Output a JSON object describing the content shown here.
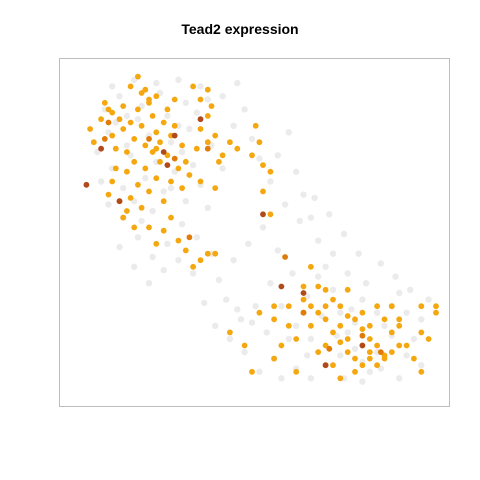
{
  "chart_data": {
    "type": "scatter",
    "title": "Tead2 expression",
    "xlabel": "",
    "ylabel": "",
    "xlim": [
      0,
      100
    ],
    "ylim": [
      0,
      100
    ],
    "axes_shown": false,
    "grid": false,
    "legend": "none",
    "color_scale": {
      "background": "#ebebeb",
      "low": "#f5a70f",
      "mid": "#e07b0a",
      "high": "#b04a1a"
    },
    "series": [
      {
        "values": [
          [
            10,
            88
          ],
          [
            11,
            81
          ],
          [
            13,
            84
          ],
          [
            14,
            92
          ],
          [
            16,
            77
          ],
          [
            17,
            74
          ],
          [
            19,
            85
          ],
          [
            20,
            89
          ],
          [
            22,
            80
          ],
          [
            24,
            72
          ],
          [
            25,
            93
          ],
          [
            27,
            86
          ],
          [
            28,
            78
          ],
          [
            30,
            83
          ],
          [
            12,
            70
          ],
          [
            15,
            64
          ],
          [
            18,
            60
          ],
          [
            21,
            67
          ],
          [
            23,
            57
          ],
          [
            26,
            63
          ],
          [
            29,
            69
          ],
          [
            31,
            75
          ],
          [
            33,
            82
          ],
          [
            34,
            71
          ],
          [
            36,
            65
          ],
          [
            38,
            58
          ],
          [
            9,
            66
          ],
          [
            8,
            75
          ],
          [
            32,
            90
          ],
          [
            35,
            87
          ],
          [
            39,
            77
          ],
          [
            42,
            70
          ],
          [
            45,
            83
          ],
          [
            48,
            88
          ],
          [
            50,
            79
          ],
          [
            52,
            73
          ],
          [
            55,
            66
          ],
          [
            57,
            74
          ],
          [
            60,
            81
          ],
          [
            62,
            69
          ],
          [
            64,
            62
          ],
          [
            66,
            55
          ],
          [
            68,
            48
          ],
          [
            70,
            40
          ],
          [
            72,
            33
          ],
          [
            74,
            26
          ],
          [
            76,
            20
          ],
          [
            78,
            15
          ],
          [
            80,
            11
          ],
          [
            82,
            8
          ],
          [
            84,
            14
          ],
          [
            86,
            22
          ],
          [
            88,
            28
          ],
          [
            90,
            32
          ],
          [
            92,
            26
          ],
          [
            94,
            18
          ],
          [
            96,
            24
          ],
          [
            98,
            30
          ],
          [
            85,
            9
          ],
          [
            80,
            5
          ],
          [
            75,
            6
          ],
          [
            70,
            10
          ],
          [
            65,
            13
          ],
          [
            60,
            18
          ],
          [
            56,
            12
          ],
          [
            52,
            8
          ],
          [
            48,
            14
          ],
          [
            44,
            18
          ],
          [
            40,
            22
          ],
          [
            37,
            29
          ],
          [
            41,
            36
          ],
          [
            45,
            42
          ],
          [
            49,
            47
          ],
          [
            53,
            52
          ],
          [
            57,
            45
          ],
          [
            61,
            38
          ],
          [
            65,
            31
          ],
          [
            69,
            25
          ],
          [
            73,
            19
          ],
          [
            77,
            27
          ],
          [
            81,
            35
          ],
          [
            85,
            41
          ],
          [
            89,
            37
          ],
          [
            93,
            33
          ],
          [
            79,
            44
          ],
          [
            75,
            50
          ],
          [
            71,
            56
          ],
          [
            67,
            61
          ],
          [
            63,
            54
          ],
          [
            59,
            59
          ],
          [
            55,
            35
          ],
          [
            51,
            28
          ],
          [
            47,
            24
          ],
          [
            43,
            30
          ],
          [
            39,
            44
          ],
          [
            35,
            49
          ],
          [
            31,
            53
          ],
          [
            27,
            47
          ],
          [
            23,
            43
          ],
          [
            19,
            49
          ],
          [
            15,
            55
          ],
          [
            11,
            59
          ],
          [
            14,
            46
          ],
          [
            18,
            40
          ],
          [
            22,
            35
          ],
          [
            26,
            39
          ],
          [
            30,
            42
          ],
          [
            34,
            38
          ],
          [
            12,
            95
          ],
          [
            18,
            97
          ],
          [
            24,
            96
          ],
          [
            30,
            97
          ],
          [
            36,
            95
          ],
          [
            42,
            92
          ],
          [
            46,
            96
          ],
          [
            38,
            91
          ],
          [
            28,
            64
          ],
          [
            32,
            60
          ],
          [
            20,
            54
          ],
          [
            16,
            86
          ],
          [
            58,
            28
          ],
          [
            62,
            22
          ],
          [
            66,
            18
          ],
          [
            54,
            20
          ],
          [
            50,
            23
          ],
          [
            46,
            27
          ],
          [
            68,
            37
          ],
          [
            72,
            44
          ],
          [
            76,
            38
          ],
          [
            80,
            30
          ],
          [
            84,
            26
          ],
          [
            88,
            19
          ],
          [
            92,
            13
          ],
          [
            96,
            10
          ],
          [
            90,
            6
          ],
          [
            62,
            9
          ],
          [
            58,
            6
          ],
          [
            66,
            6
          ],
          [
            74,
            13
          ],
          [
            78,
            23
          ]
        ]
      },
      {
        "values": [
          [
            6,
            82
          ],
          [
            7,
            78
          ],
          [
            9,
            85
          ],
          [
            10,
            90
          ],
          [
            11,
            88
          ],
          [
            12,
            87
          ],
          [
            12,
            80
          ],
          [
            13,
            76
          ],
          [
            13,
            70
          ],
          [
            14,
            85
          ],
          [
            15,
            89
          ],
          [
            15,
            82
          ],
          [
            16,
            75
          ],
          [
            16,
            69
          ],
          [
            17,
            84
          ],
          [
            18,
            79
          ],
          [
            18,
            72
          ],
          [
            19,
            88
          ],
          [
            19,
            65
          ],
          [
            20,
            83
          ],
          [
            21,
            77
          ],
          [
            21,
            70
          ],
          [
            22,
            90
          ],
          [
            22,
            63
          ],
          [
            23,
            86
          ],
          [
            23,
            75
          ],
          [
            24,
            81
          ],
          [
            24,
            67
          ],
          [
            25,
            78
          ],
          [
            25,
            72
          ],
          [
            26,
            84
          ],
          [
            26,
            60
          ],
          [
            27,
            74
          ],
          [
            28,
            80
          ],
          [
            28,
            66
          ],
          [
            29,
            83
          ],
          [
            30,
            70
          ],
          [
            31,
            77
          ],
          [
            31,
            64
          ],
          [
            32,
            72
          ],
          [
            33,
            68
          ],
          [
            11,
            62
          ],
          [
            12,
            66
          ],
          [
            14,
            60
          ],
          [
            15,
            55
          ],
          [
            16,
            57
          ],
          [
            17,
            61
          ],
          [
            18,
            52
          ],
          [
            20,
            58
          ],
          [
            22,
            52
          ],
          [
            24,
            47
          ],
          [
            26,
            51
          ],
          [
            28,
            55
          ],
          [
            30,
            48
          ],
          [
            32,
            45
          ],
          [
            34,
            40
          ],
          [
            36,
            42
          ],
          [
            38,
            44
          ],
          [
            40,
            44
          ],
          [
            17,
            95
          ],
          [
            20,
            93
          ],
          [
            19,
            98
          ],
          [
            21,
            94
          ],
          [
            22,
            91
          ],
          [
            24,
            92
          ],
          [
            34,
            95
          ],
          [
            36,
            91
          ],
          [
            38,
            94
          ],
          [
            39,
            89
          ],
          [
            38,
            86
          ],
          [
            40,
            80
          ],
          [
            44,
            78
          ],
          [
            46,
            76
          ],
          [
            50,
            74
          ],
          [
            52,
            78
          ],
          [
            51,
            83
          ],
          [
            53,
            71
          ],
          [
            55,
            69
          ],
          [
            53,
            63
          ],
          [
            55,
            56
          ],
          [
            35,
            76
          ],
          [
            36,
            82
          ],
          [
            24,
            76
          ],
          [
            27,
            88
          ],
          [
            29,
            91
          ],
          [
            40,
            64
          ],
          [
            41,
            72
          ],
          [
            66,
            40
          ],
          [
            64,
            34
          ],
          [
            68,
            34
          ],
          [
            70,
            28
          ],
          [
            72,
            30
          ],
          [
            74,
            28
          ],
          [
            74,
            22
          ],
          [
            76,
            25
          ],
          [
            78,
            24
          ],
          [
            80,
            21
          ],
          [
            80,
            16
          ],
          [
            82,
            18
          ],
          [
            82,
            22
          ],
          [
            84,
            16
          ],
          [
            84,
            28
          ],
          [
            86,
            13
          ],
          [
            88,
            20
          ],
          [
            90,
            16
          ],
          [
            72,
            10
          ],
          [
            76,
            14
          ],
          [
            78,
            12
          ],
          [
            78,
            8
          ],
          [
            74,
            6
          ],
          [
            60,
            22
          ],
          [
            62,
            18
          ],
          [
            64,
            26
          ],
          [
            58,
            16
          ],
          [
            50,
            8
          ],
          [
            56,
            12
          ],
          [
            62,
            8
          ],
          [
            70,
            16
          ],
          [
            66,
            22
          ],
          [
            68,
            14
          ],
          [
            72,
            20
          ],
          [
            76,
            18
          ],
          [
            80,
            10
          ],
          [
            82,
            14
          ],
          [
            86,
            24
          ],
          [
            88,
            14
          ],
          [
            96,
            20
          ],
          [
            100,
            26
          ],
          [
            90,
            22
          ],
          [
            92,
            16
          ],
          [
            96,
            28
          ],
          [
            100,
            28
          ],
          [
            80,
            26
          ],
          [
            86,
            12
          ],
          [
            70,
            24
          ],
          [
            56,
            24
          ],
          [
            48,
            16
          ],
          [
            44,
            20
          ],
          [
            52,
            26
          ],
          [
            56,
            28
          ],
          [
            60,
            28
          ],
          [
            64,
            30
          ],
          [
            66,
            28
          ],
          [
            68,
            26
          ],
          [
            70,
            33
          ],
          [
            74,
            17
          ],
          [
            76,
            33
          ],
          [
            82,
            12
          ],
          [
            84,
            10
          ],
          [
            88,
            28
          ],
          [
            90,
            24
          ],
          [
            94,
            12
          ],
          [
            96,
            8
          ],
          [
            98,
            18
          ],
          [
            36,
            66
          ],
          [
            38,
            78
          ],
          [
            42,
            74
          ]
        ]
      },
      {
        "values": [
          [
            10,
            79
          ],
          [
            11,
            84
          ],
          [
            29,
            73
          ],
          [
            38,
            76
          ],
          [
            22,
            79
          ],
          [
            33,
            49
          ],
          [
            59,
            43
          ],
          [
            80,
            19
          ],
          [
            85,
            14
          ],
          [
            64,
            26
          ],
          [
            71,
            15
          ]
        ]
      },
      {
        "values": [
          [
            5,
            65
          ],
          [
            9,
            76
          ],
          [
            27,
            71
          ],
          [
            29,
            80
          ],
          [
            14,
            60
          ],
          [
            26,
            75
          ],
          [
            36,
            85
          ],
          [
            53,
            56
          ],
          [
            58,
            34
          ],
          [
            64,
            32
          ],
          [
            70,
            10
          ],
          [
            80,
            16
          ]
        ]
      }
    ]
  }
}
